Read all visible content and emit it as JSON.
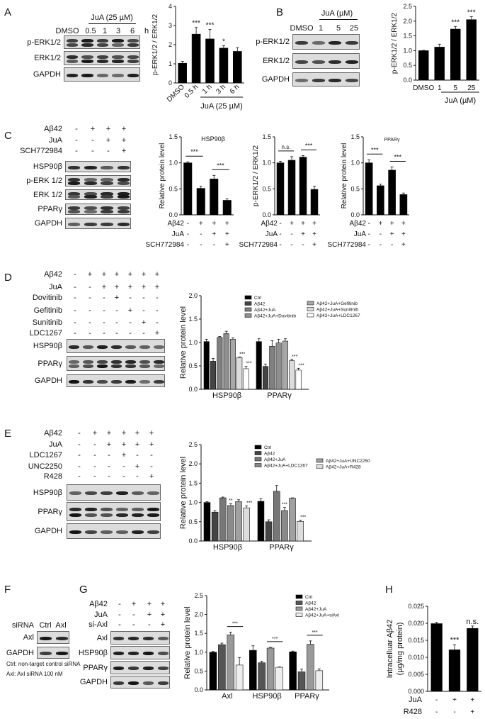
{
  "panels": [
    "A",
    "B",
    "C",
    "D",
    "E",
    "F",
    "G",
    "H"
  ],
  "blots": {
    "A": {
      "header": "JuA (25 µM)",
      "lanes": [
        "DMSO",
        "0.5",
        "1",
        "3",
        "6"
      ],
      "unit": "h",
      "rows": [
        "p-ERK1/2",
        "ERK1/2",
        "GAPDH"
      ]
    },
    "B": {
      "header": "JuA (µM)",
      "lanes": [
        "DMSO",
        "1",
        "5",
        "25"
      ],
      "rows": [
        "p-ERK1/2",
        "ERK1/2",
        "GAPDH"
      ]
    },
    "C": {
      "conditions": [
        {
          "name": "Aβ42",
          "marks": [
            "-",
            "+",
            "+",
            "+"
          ]
        },
        {
          "name": "JuA",
          "marks": [
            "-",
            "-",
            "+",
            "+"
          ]
        },
        {
          "name": "SCH772984",
          "marks": [
            "-",
            "-",
            "-",
            "+"
          ]
        }
      ],
      "rows": [
        "HSP90β",
        "p-ERK 1/2",
        "ERK 1/2",
        "PPARγ",
        "GAPDH"
      ]
    },
    "D": {
      "conditions": [
        {
          "name": "Aβ42",
          "marks": [
            "-",
            "+",
            "+",
            "+",
            "+",
            "+",
            "+"
          ]
        },
        {
          "name": "JuA",
          "marks": [
            "-",
            "-",
            "+",
            "+",
            "+",
            "+",
            "+"
          ]
        },
        {
          "name": "Dovitinib",
          "marks": [
            "-",
            "-",
            "-",
            "+",
            "-",
            "-",
            "-"
          ]
        },
        {
          "name": "Gefitinib",
          "marks": [
            "-",
            "-",
            "-",
            "-",
            "+",
            "-",
            "-"
          ]
        },
        {
          "name": "Sunitinib",
          "marks": [
            "-",
            "-",
            "-",
            "-",
            "-",
            "+",
            "-"
          ]
        },
        {
          "name": "LDC1267",
          "marks": [
            "-",
            "-",
            "-",
            "-",
            "-",
            "-",
            "+"
          ]
        }
      ],
      "rows": [
        "HSP90β",
        "PPARγ",
        "GAPDH"
      ]
    },
    "E": {
      "conditions": [
        {
          "name": "Aβ42",
          "marks": [
            "-",
            "+",
            "+",
            "+",
            "+",
            "+"
          ]
        },
        {
          "name": "JuA",
          "marks": [
            "-",
            "-",
            "+",
            "+",
            "+",
            "+"
          ]
        },
        {
          "name": "LDC1267",
          "marks": [
            "-",
            "-",
            "-",
            "+",
            "-",
            "-"
          ]
        },
        {
          "name": "UNC2250",
          "marks": [
            "-",
            "-",
            "-",
            "-",
            "+",
            "-"
          ]
        },
        {
          "name": "R428",
          "marks": [
            "-",
            "-",
            "-",
            "-",
            "-",
            "+"
          ]
        }
      ],
      "rows": [
        "HSP90β",
        "PPARγ",
        "GAPDH"
      ]
    },
    "F": {
      "header_label": "siRNA",
      "lanes": [
        "Ctrl",
        "Axl"
      ],
      "rows": [
        "Axl",
        "GAPDH"
      ],
      "notes": [
        "Ctrl: non-target control siRNA",
        "Axl: Axl siRNA  100 nM"
      ]
    },
    "G": {
      "conditions": [
        {
          "name": "Aβ42",
          "marks": [
            "-",
            "+",
            "+",
            "+"
          ]
        },
        {
          "name": "JuA",
          "marks": [
            "-",
            "-",
            "+",
            "+"
          ]
        },
        {
          "name": "si-Axl",
          "marks": [
            "-",
            "-",
            "-",
            "+"
          ]
        }
      ],
      "rows": [
        "Axl",
        "HSP90β",
        "PPARγ",
        "GAPDH"
      ]
    }
  },
  "chart_data": [
    {
      "panel": "A",
      "type": "bar",
      "title": "",
      "ylabel": "p-ERK1/2 / ERK1/2",
      "categories": [
        "DMSO",
        "0.5 h",
        "1 h",
        "3 h",
        "6 h"
      ],
      "values": [
        1.03,
        2.55,
        2.3,
        1.82,
        1.65
      ],
      "errors": [
        0.1,
        0.35,
        0.5,
        0.13,
        0.2
      ],
      "significance": [
        "",
        "***",
        "***",
        "*",
        ""
      ],
      "ylim": [
        0,
        4
      ],
      "yticks": [
        0,
        1,
        2,
        3,
        4
      ],
      "ytick_labels": [
        "0",
        "1",
        "2",
        "3",
        "4"
      ],
      "group_label": "JuA (25 µM)",
      "color": "#000000"
    },
    {
      "panel": "B",
      "type": "bar",
      "title": "",
      "ylabel": "p-ERK1/2 / ERK1/2",
      "categories": [
        "DMSO",
        "1",
        "5",
        "25"
      ],
      "values": [
        1.0,
        1.12,
        1.73,
        2.05
      ],
      "errors": [
        0.01,
        0.1,
        0.09,
        0.1
      ],
      "significance": [
        "",
        "",
        "***",
        "***"
      ],
      "ylim": [
        0,
        2.5
      ],
      "yticks": [
        0,
        0.5,
        1,
        1.5,
        2,
        2.5
      ],
      "ytick_labels": [
        "0.0",
        "0.5",
        "1.0",
        "1.5",
        "2.0",
        "2.5"
      ],
      "group_label": "JuA (µM)",
      "color": "#000000"
    },
    {
      "panel": "C",
      "type": "bar",
      "title": "HSP90β",
      "ylabel": "Relative protein level",
      "values": [
        1.0,
        0.51,
        0.69,
        0.28
      ],
      "errors": [
        0.02,
        0.04,
        0.07,
        0.03
      ],
      "brackets": [
        [
          0,
          1,
          "***"
        ],
        [
          2,
          3,
          "***"
        ]
      ],
      "ylim": [
        0,
        1.5
      ],
      "yticks": [
        0,
        0.5,
        1,
        1.5
      ],
      "ytick_labels": [
        "0.0",
        "0.5",
        "1.0",
        "1.5"
      ],
      "conditions": [
        {
          "name": "Aβ42",
          "marks": [
            "-",
            "+",
            "+",
            "+"
          ]
        },
        {
          "name": "JuA",
          "marks": [
            "-",
            "-",
            "+",
            "+"
          ]
        },
        {
          "name": "SCH772984",
          "marks": [
            "-",
            "-",
            "-",
            "+"
          ]
        }
      ],
      "color": "#000000"
    },
    {
      "panel": "C",
      "type": "bar",
      "title": "",
      "ylabel": "p-ERK1/2 / ERK1/2",
      "values": [
        1.0,
        1.05,
        1.11,
        0.49
      ],
      "errors": [
        0.03,
        0.07,
        0.03,
        0.06
      ],
      "brackets": [
        [
          0,
          1,
          "n.s."
        ],
        [
          2,
          3,
          "***"
        ]
      ],
      "ylim": [
        0,
        1.5
      ],
      "yticks": [
        0,
        0.5,
        1,
        1.5
      ],
      "ytick_labels": [
        "0.0",
        "0.5",
        "1.0",
        "1.5"
      ],
      "conditions": [
        {
          "name": "Aβ42",
          "marks": [
            "-",
            "+",
            "+",
            "+"
          ]
        },
        {
          "name": "JuA",
          "marks": [
            "-",
            "-",
            "+",
            "+"
          ]
        },
        {
          "name": "SCH772984",
          "marks": [
            "-",
            "-",
            "-",
            "+"
          ]
        }
      ],
      "color": "#000000"
    },
    {
      "panel": "C",
      "type": "bar",
      "title": "PPARγ",
      "ylabel": "Relative protein level",
      "values": [
        1.0,
        0.56,
        0.86,
        0.39
      ],
      "errors": [
        0.06,
        0.03,
        0.06,
        0.03
      ],
      "brackets": [
        [
          0,
          1,
          "***"
        ],
        [
          2,
          3,
          "***"
        ]
      ],
      "ylim": [
        0,
        1.5
      ],
      "yticks": [
        0,
        0.5,
        1,
        1.5
      ],
      "ytick_labels": [
        "0.0",
        "0.5",
        "1.0",
        "1.5"
      ],
      "conditions": [
        {
          "name": "Aβ42",
          "marks": [
            "-",
            "+",
            "+",
            "+"
          ]
        },
        {
          "name": "JuA",
          "marks": [
            "-",
            "-",
            "+",
            "+"
          ]
        },
        {
          "name": "SCH772984",
          "marks": [
            "-",
            "-",
            "-",
            "+"
          ]
        }
      ],
      "color": "#000000"
    },
    {
      "panel": "D",
      "type": "bar",
      "ylabel": "Relative protein level",
      "groups": [
        "HSP90β",
        "PPARγ"
      ],
      "ylim": [
        0,
        2
      ],
      "yticks": [
        0,
        0.5,
        1,
        1.5,
        2
      ],
      "ytick_labels": [
        "0.0",
        "0.5",
        "1.0",
        "1.5",
        "2.0"
      ],
      "legend": "top-right",
      "series": [
        {
          "name": "Ctrl",
          "color": "#000000",
          "values": [
            1.02,
            1.02
          ],
          "errors": [
            0.05,
            0.06
          ],
          "significance": [
            "",
            ""
          ]
        },
        {
          "name": "Aβ42",
          "color": "#444444",
          "values": [
            0.6,
            0.49
          ],
          "errors": [
            0.06,
            0.05
          ],
          "significance": [
            "",
            ""
          ]
        },
        {
          "name": "Aβ42+JuA",
          "color": "#808080",
          "values": [
            1.11,
            0.92
          ],
          "errors": [
            0.02,
            0.12
          ],
          "significance": [
            "",
            ""
          ]
        },
        {
          "name": "Aβ42+JuA+Dovitinib",
          "color": "#8f8f8f",
          "values": [
            1.19,
            0.99
          ],
          "errors": [
            0.05,
            0.08
          ],
          "significance": [
            "",
            ""
          ]
        },
        {
          "name": "Aβ42+JuA+Gefitinib",
          "color": "#a8a8a8",
          "values": [
            1.07,
            1.03
          ],
          "errors": [
            0.03,
            0.05
          ],
          "significance": [
            "",
            ""
          ]
        },
        {
          "name": "Aβ42+JuA+Sunitinib",
          "color": "#dddddd",
          "values": [
            0.68,
            0.61
          ],
          "errors": [
            0.01,
            0.03
          ],
          "significance": [
            "***",
            "***"
          ]
        },
        {
          "name": "Aβ42+JuA+LDC1267",
          "color": "#ffffff",
          "values": [
            0.44,
            0.41
          ],
          "errors": [
            0.05,
            0.04
          ],
          "significance": [
            "***",
            "***"
          ]
        }
      ]
    },
    {
      "panel": "E",
      "type": "bar",
      "ylabel": "Relative protein level",
      "groups": [
        "HSP90β",
        "PPARγ"
      ],
      "ylim": [
        0,
        2.5
      ],
      "yticks": [
        0,
        0.5,
        1,
        1.5,
        2,
        2.5
      ],
      "ytick_labels": [
        "0.0",
        "0.5",
        "1.0",
        "1.5",
        "2.0",
        "2.5"
      ],
      "legend": "top-right",
      "series": [
        {
          "name": "Ctrl",
          "color": "#000000",
          "values": [
            1.0,
            1.03
          ],
          "errors": [
            0.02,
            0.07
          ],
          "significance": [
            "",
            ""
          ]
        },
        {
          "name": "Aβ42",
          "color": "#444444",
          "values": [
            0.75,
            0.5
          ],
          "errors": [
            0.04,
            0.05
          ],
          "significance": [
            "",
            ""
          ]
        },
        {
          "name": "Aβ42+JuA",
          "color": "#777777",
          "values": [
            1.12,
            1.29
          ],
          "errors": [
            0.02,
            0.15
          ],
          "significance": [
            "",
            ""
          ]
        },
        {
          "name": "Aβ42+JuA+LDC1267",
          "color": "#8a8a8a",
          "values": [
            0.92,
            0.79
          ],
          "errors": [
            0.05,
            0.08
          ],
          "significance": [
            "**",
            "***"
          ]
        },
        {
          "name": "Aβ42+JuA+UNC2250",
          "color": "#a0a0a0",
          "values": [
            1.02,
            1.11
          ],
          "errors": [
            0.05,
            0.01
          ],
          "significance": [
            "",
            ""
          ]
        },
        {
          "name": "Aβ42+JuA+R428",
          "color": "#dddddd",
          "values": [
            0.86,
            0.51
          ],
          "errors": [
            0.05,
            0.03
          ],
          "significance": [
            "***",
            "***"
          ]
        }
      ]
    },
    {
      "panel": "G",
      "type": "bar",
      "ylabel": "Relative protein level",
      "groups": [
        "Axl",
        "HSP90β",
        "PPARγ"
      ],
      "ylim": [
        0,
        2.5
      ],
      "yticks": [
        0,
        0.5,
        1,
        1.5,
        2,
        2.5
      ],
      "ytick_labels": [
        "0.0",
        "0.5",
        "1.0",
        "1.5",
        "2.0",
        "2.5"
      ],
      "legend": "top-right",
      "group_brackets": [
        2,
        3,
        "***"
      ],
      "series": [
        {
          "name": "Ctrl",
          "color": "#000000",
          "values": [
            1.0,
            1.05,
            1.01
          ],
          "errors": [
            0.02,
            0.12,
            0.02
          ]
        },
        {
          "name": "Aβ42",
          "color": "#555555",
          "values": [
            1.2,
            0.72,
            0.48
          ],
          "errors": [
            0.04,
            0.04,
            0.07
          ]
        },
        {
          "name": "Aβ42+JuA",
          "color": "#999999",
          "values": [
            1.46,
            1.11,
            1.21
          ],
          "errors": [
            0.07,
            0.02,
            0.09
          ]
        },
        {
          "name": "Aβ42+JuA+siAxl",
          "color": "#eeeeee",
          "values": [
            0.66,
            0.6,
            0.51
          ],
          "errors": [
            0.2,
            0.01,
            0.05
          ]
        }
      ]
    },
    {
      "panel": "H",
      "type": "bar",
      "ylabel": "Intracelluar Aβ42",
      "ylabel2": "(µg/mg protein)",
      "values": [
        0.0199,
        0.0122,
        0.0185
      ],
      "errors": [
        0.0004,
        0.0015,
        0.0007
      ],
      "significance": [
        "",
        "***",
        "n.s."
      ],
      "ylim": [
        0,
        0.025
      ],
      "yticks": [
        0,
        0.005,
        0.01,
        0.015,
        0.02,
        0.025
      ],
      "ytick_labels": [
        "0.000",
        "0.005",
        "0.010",
        "0.015",
        "0.020",
        "0.025"
      ],
      "conditions": [
        {
          "name": "JuA",
          "marks": [
            "-",
            "+",
            "+"
          ]
        },
        {
          "name": "R428",
          "marks": [
            "-",
            "-",
            "+"
          ]
        }
      ],
      "color": "#000000"
    }
  ]
}
